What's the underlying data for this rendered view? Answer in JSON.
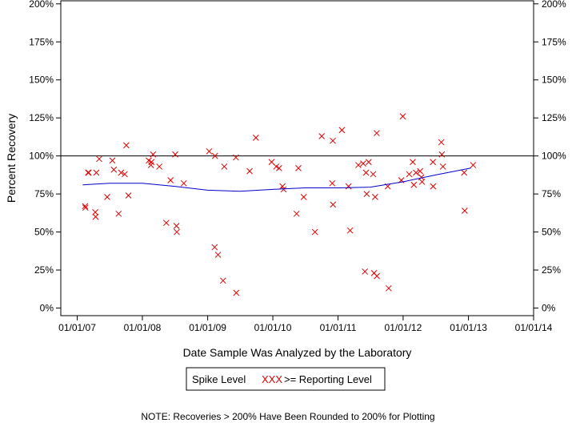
{
  "chart_data": {
    "type": "scatter",
    "xlabel": "Date Sample Was Analyzed by the Laboratory",
    "ylabel": "Percent Recovery",
    "x_ticks": [
      "01/01/07",
      "01/01/08",
      "01/01/09",
      "01/01/10",
      "01/01/11",
      "01/01/12",
      "01/01/13",
      "01/01/14"
    ],
    "y_ticks": [
      "0%",
      "25%",
      "50%",
      "75%",
      "100%",
      "125%",
      "150%",
      "175%",
      "200%"
    ],
    "xlim": [
      "2006-10-01",
      "2014-01-01"
    ],
    "ylim": [
      -5,
      202
    ],
    "reference_line": 100,
    "grid": false,
    "legend": {
      "title": "Spike Level",
      "entries": [
        {
          "label": ">= Reporting Level",
          "marker": "XXX",
          "color": "#e00000"
        }
      ],
      "position": "bottom-center"
    },
    "note": "NOTE: Recoveries > 200% Have Been Rounded to 200% for Plotting",
    "series": [
      {
        "color": "#e00000",
        "marker": "x",
        "points": [
          [
            "2007-02-14",
            67
          ],
          [
            "2007-02-16",
            66
          ],
          [
            "2007-03-03",
            89
          ],
          [
            "2007-03-06",
            89
          ],
          [
            "2007-04-12",
            63
          ],
          [
            "2007-04-14",
            60
          ],
          [
            "2007-04-18",
            89
          ],
          [
            "2007-05-04",
            98
          ],
          [
            "2007-06-18",
            73
          ],
          [
            "2007-07-17",
            97
          ],
          [
            "2007-07-25",
            91
          ],
          [
            "2007-08-21",
            62
          ],
          [
            "2007-09-04",
            89
          ],
          [
            "2007-09-24",
            88
          ],
          [
            "2007-10-03",
            107
          ],
          [
            "2007-10-15",
            74
          ],
          [
            "2008-02-06",
            97
          ],
          [
            "2008-02-18",
            94
          ],
          [
            "2008-02-21",
            96
          ],
          [
            "2008-03-01",
            101
          ],
          [
            "2008-04-05",
            93
          ],
          [
            "2008-05-14",
            56
          ],
          [
            "2008-06-07",
            84
          ],
          [
            "2008-07-03",
            101
          ],
          [
            "2008-07-10",
            54
          ],
          [
            "2008-07-12",
            50
          ],
          [
            "2008-08-20",
            82
          ],
          [
            "2009-01-09",
            103
          ],
          [
            "2009-02-09",
            40
          ],
          [
            "2009-02-11",
            100
          ],
          [
            "2009-02-28",
            35
          ],
          [
            "2009-03-28",
            18
          ],
          [
            "2009-04-04",
            93
          ],
          [
            "2009-06-08",
            99
          ],
          [
            "2009-06-10",
            10
          ],
          [
            "2009-08-24",
            90
          ],
          [
            "2009-09-28",
            112
          ],
          [
            "2009-12-25",
            96
          ],
          [
            "2010-01-20",
            93
          ],
          [
            "2010-02-05",
            92
          ],
          [
            "2010-02-24",
            80
          ],
          [
            "2010-03-02",
            78
          ],
          [
            "2010-05-14",
            62
          ],
          [
            "2010-05-24",
            92
          ],
          [
            "2010-06-23",
            73
          ],
          [
            "2010-08-25",
            50
          ],
          [
            "2010-10-02",
            113
          ],
          [
            "2010-11-30",
            82
          ],
          [
            "2010-12-03",
            110
          ],
          [
            "2010-12-04",
            68
          ],
          [
            "2011-01-23",
            117
          ],
          [
            "2011-03-10",
            51
          ],
          [
            "2011-03-01",
            80
          ],
          [
            "2011-04-25",
            94
          ],
          [
            "2011-05-22",
            95
          ],
          [
            "2011-06-01",
            24
          ],
          [
            "2011-06-07",
            89
          ],
          [
            "2011-06-11",
            75
          ],
          [
            "2011-06-22",
            96
          ],
          [
            "2011-07-17",
            88
          ],
          [
            "2011-07-22",
            23
          ],
          [
            "2011-07-28",
            73
          ],
          [
            "2011-08-06",
            115
          ],
          [
            "2011-08-07",
            21
          ],
          [
            "2011-10-07",
            80
          ],
          [
            "2011-10-12",
            13
          ],
          [
            "2011-12-22",
            84
          ],
          [
            "2011-12-30",
            126
          ],
          [
            "2012-02-04",
            88
          ],
          [
            "2012-02-24",
            96
          ],
          [
            "2012-03-01",
            81
          ],
          [
            "2012-03-13",
            89
          ],
          [
            "2012-04-05",
            90
          ],
          [
            "2012-04-12",
            86
          ],
          [
            "2012-04-16",
            83
          ],
          [
            "2012-06-16",
            96
          ],
          [
            "2012-06-17",
            80
          ],
          [
            "2012-08-02",
            109
          ],
          [
            "2012-08-05",
            101
          ],
          [
            "2012-08-11",
            93
          ],
          [
            "2012-12-08",
            89
          ],
          [
            "2012-12-11",
            64
          ],
          [
            "2013-01-27",
            94
          ]
        ]
      }
    ],
    "trend": {
      "color": "#0000cc",
      "points": [
        [
          "2007-02-01",
          81
        ],
        [
          "2007-07-01",
          82
        ],
        [
          "2008-01-01",
          82
        ],
        [
          "2008-07-01",
          80
        ],
        [
          "2009-01-01",
          77.5
        ],
        [
          "2009-07-01",
          76.8
        ],
        [
          "2010-01-01",
          78
        ],
        [
          "2010-07-01",
          79
        ],
        [
          "2011-01-01",
          79
        ],
        [
          "2011-07-01",
          79.5
        ],
        [
          "2012-01-01",
          83
        ],
        [
          "2012-07-01",
          87.5
        ],
        [
          "2013-01-15",
          92
        ]
      ]
    }
  }
}
